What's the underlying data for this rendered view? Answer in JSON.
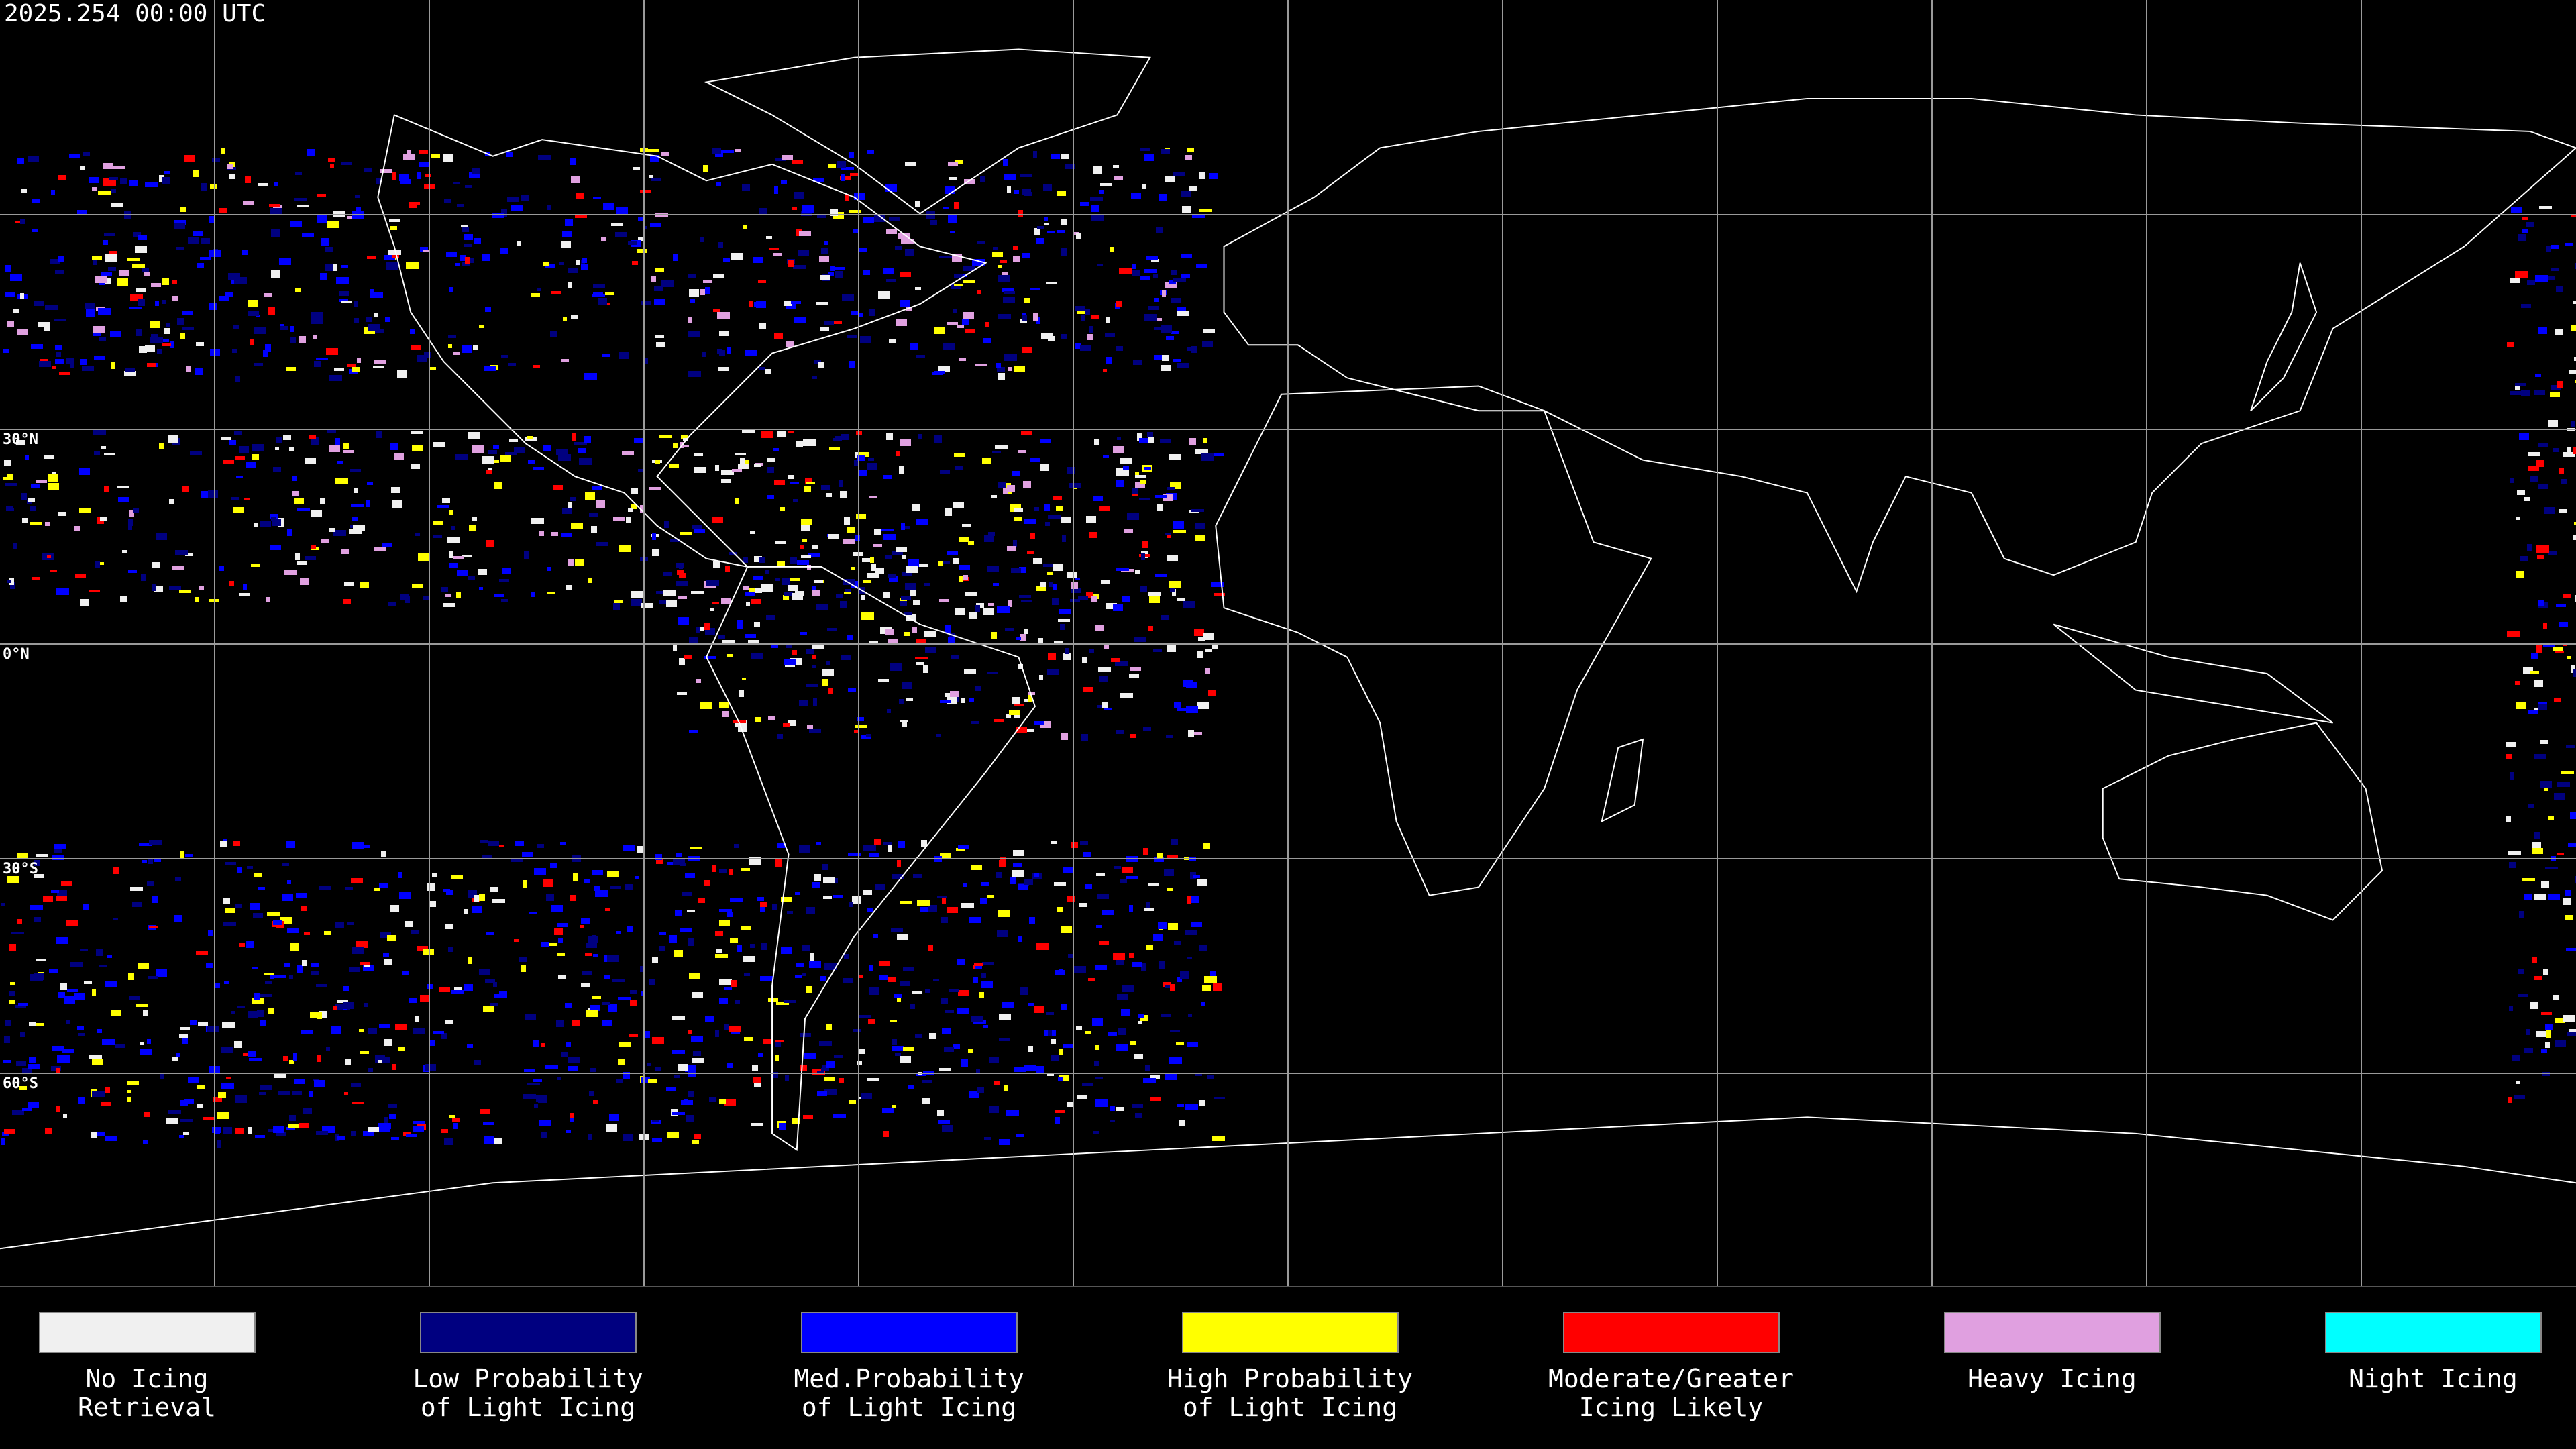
{
  "header": {
    "title": "2025.254 00:00 UTC"
  },
  "lat_labels": [
    "30°N",
    "0°N",
    "30°S",
    "60°S"
  ],
  "legend": [
    {
      "lines": [
        "No Icing",
        "Retrieval"
      ],
      "color": "#f0f0f0"
    },
    {
      "lines": [
        "Low Probability",
        "of Light Icing"
      ],
      "color": "#000080"
    },
    {
      "lines": [
        "Med.Probability",
        "of Light Icing"
      ],
      "color": "#0000ff"
    },
    {
      "lines": [
        "High Probability",
        "of Light Icing"
      ],
      "color": "#ffff00"
    },
    {
      "lines": [
        "Moderate/Greater",
        "Icing Likely"
      ],
      "color": "#ff0000"
    },
    {
      "lines": [
        "Heavy Icing"
      ],
      "color": "#e0a0e0"
    },
    {
      "lines": [
        "Night Icing"
      ],
      "color": "#00ffff"
    }
  ]
}
